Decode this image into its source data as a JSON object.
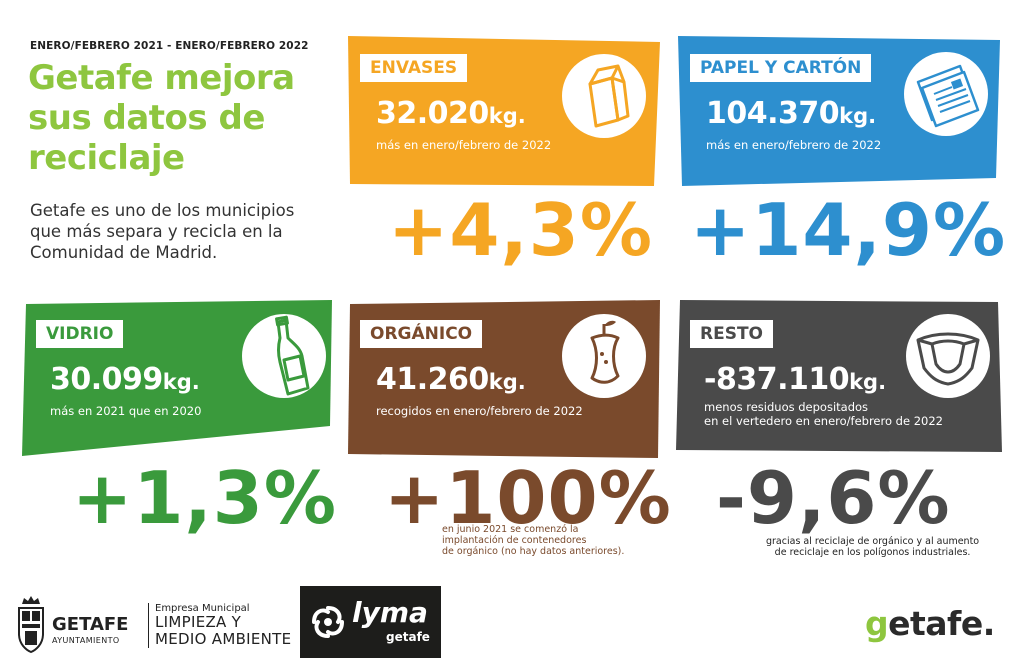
{
  "period": "ENERO/FEBRERO 2021 - ENERO/FEBRERO 2022",
  "headline": [
    "Getafe mejora",
    "sus datos de",
    "reciclaje"
  ],
  "lead": [
    "Getafe es uno de los municipios",
    "que más separa y recicla en la",
    "Comunidad de Madrid."
  ],
  "cards": {
    "envases": {
      "label": "ENVASES",
      "amount": "32.020",
      "unit": "kg.",
      "note": "más en enero/febrero de 2022",
      "change": "+4,3%",
      "color": "#f5a623",
      "icon": "milk-carton-icon"
    },
    "papel": {
      "label": "PAPEL Y CARTÓN",
      "amount": "104.370",
      "unit": "kg.",
      "note": "más en enero/febrero de 2022",
      "change": "+14,9%",
      "color": "#2d8fcf",
      "icon": "newspaper-icon"
    },
    "vidrio": {
      "label": "VIDRIO",
      "amount": "30.099",
      "unit": "kg.",
      "note": "más en 2021 que en 2020",
      "change": "+1,3%",
      "color": "#3a9a3c",
      "icon": "bottle-icon"
    },
    "organico": {
      "label": "ORGÁNICO",
      "amount": "41.260",
      "unit": "kg.",
      "note": "recogidos en enero/febrero de 2022",
      "change": "+100%",
      "color": "#7a4a2c",
      "icon": "apple-core-icon",
      "footnote": [
        "en junio 2021 se comenzó la",
        "implantación de contenedores",
        "de orgánico (no hay datos anteriores)."
      ]
    },
    "resto": {
      "label": "RESTO",
      "amount": "-837.110",
      "unit": "kg.",
      "note_lines": [
        "menos residuos depositados",
        "en el vertedero en enero/febrero de 2022"
      ],
      "change": "-9,6%",
      "color": "#4a4a4a",
      "icon": "diaper-icon",
      "footnote": [
        "gracias al reciclaje de orgánico y al aumento",
        "de reciclaje en los polígonos industriales."
      ]
    }
  },
  "footer": {
    "getafe_logo": "GETAFE",
    "getafe_sub": "AYUNTAMIENTO",
    "empresa_small": "Empresa Municipal",
    "empresa_line1": "LIMPIEZA Y",
    "empresa_line2": "MEDIO AMBIENTE",
    "lyma_name": "lyma",
    "lyma_sub": "getafe",
    "brand_g": "g",
    "brand_rest": "etafe."
  },
  "colors": {
    "green_title": "#8ec63f",
    "text_dark": "#2b2b2b"
  }
}
